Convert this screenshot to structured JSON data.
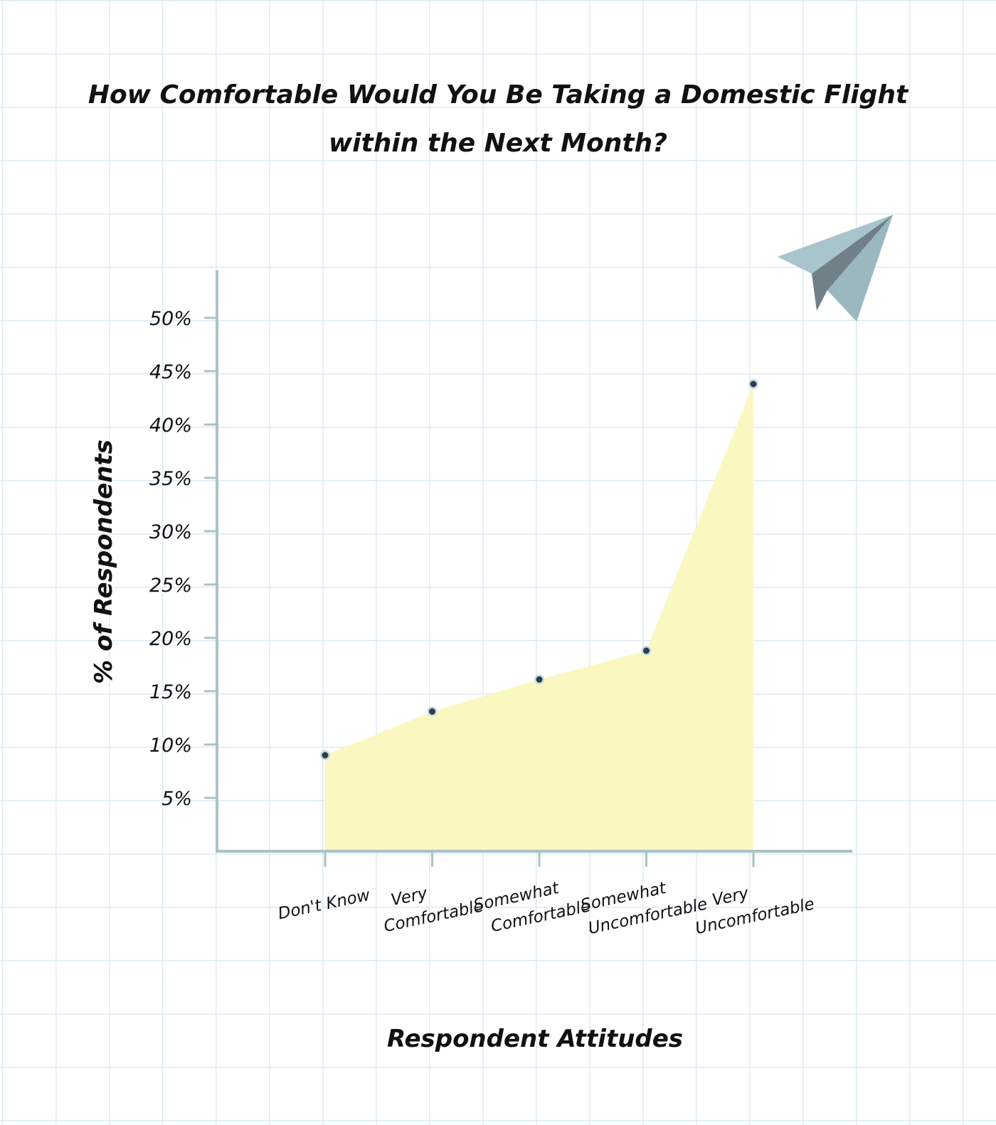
{
  "chart_data": {
    "type": "area",
    "title": "How Comfortable Would You Be Taking a Domestic Flight within the Next Month?",
    "xlabel": "Respondent Attitudes",
    "ylabel": "% of Respondents",
    "categories": [
      [
        "Don't Know"
      ],
      [
        "Very",
        "Comfortable"
      ],
      [
        "Somewhat",
        "Comfortable"
      ],
      [
        "Somewhat",
        "Uncomfortable"
      ],
      [
        "Very",
        "Uncomfortable"
      ]
    ],
    "values": [
      9,
      13.1,
      16.1,
      18.8,
      43.8
    ],
    "ylim": [
      0,
      55
    ],
    "yticks": [
      {
        "value": 5,
        "label": "5%"
      },
      {
        "value": 10,
        "label": "10%"
      },
      {
        "value": 15,
        "label": "15%"
      },
      {
        "value": 20,
        "label": "20%"
      },
      {
        "value": 25,
        "label": "25%"
      },
      {
        "value": 30,
        "label": "30%"
      },
      {
        "value": 35,
        "label": "35%"
      },
      {
        "value": 40,
        "label": "40%"
      },
      {
        "value": 45,
        "label": "45%"
      },
      {
        "value": 50,
        "label": "50%"
      }
    ],
    "grid": true,
    "legend": "none"
  },
  "colors": {
    "area_fill": "#fbf7c0",
    "axis": "#a9c3c6",
    "marker_fill": "#2f3f4a",
    "marker_ring": "#c9dbe3",
    "plane_light": "#a8c4cc",
    "plane_dark": "#6f8086",
    "plane_mid": "#8fa3aa"
  },
  "decoration": {
    "icon": "paper-plane-icon"
  }
}
